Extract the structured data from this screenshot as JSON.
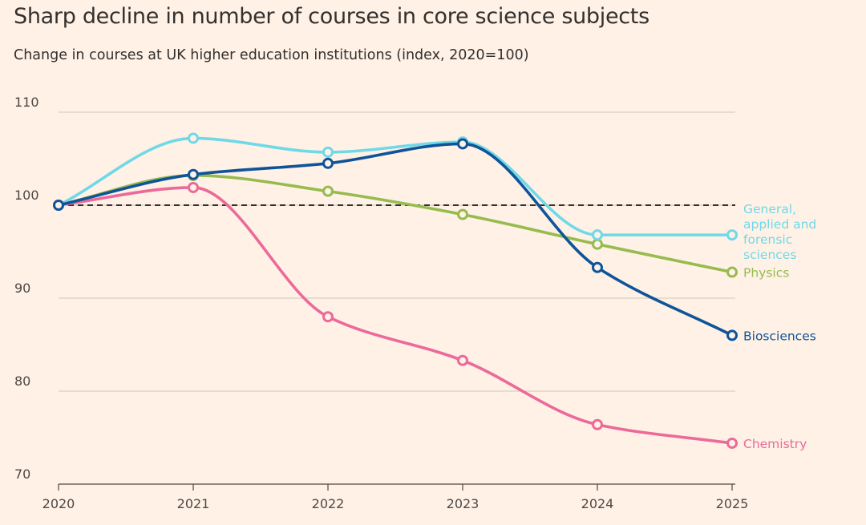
{
  "header": {
    "title": "Sharp decline in number of courses in core science subjects",
    "subtitle": "Change in courses at UK higher education institutions (index, 2020=100)"
  },
  "chart_data": {
    "type": "line",
    "title": "Sharp decline in number of courses in core science subjects",
    "subtitle": "Change in courses at UK higher education institutions (index, 2020=100)",
    "xlabel": "",
    "ylabel": "",
    "x": [
      "2020",
      "2021",
      "2022",
      "2023",
      "2024",
      "2025"
    ],
    "ylim": [
      70,
      110
    ],
    "yticks": [
      70,
      80,
      90,
      100,
      110
    ],
    "grid": true,
    "reference_line": {
      "y": 100,
      "style": "dashed",
      "color": "#33302e"
    },
    "legend": "direct labels at right",
    "series": [
      {
        "name": "General, applied and forensic sciences",
        "label_lines": [
          "General,",
          "applied and",
          "forensic",
          "sciences"
        ],
        "color": "#6fd9e8",
        "values": [
          100,
          107.2,
          105.7,
          106.8,
          96.8,
          96.8
        ]
      },
      {
        "name": "Biosciences",
        "label_lines": [
          "Biosciences"
        ],
        "color": "#0f5499",
        "values": [
          100,
          103.3,
          104.5,
          106.6,
          93.3,
          86.0
        ]
      },
      {
        "name": "Physics",
        "label_lines": [
          "Physics"
        ],
        "color": "#96bb4f",
        "values": [
          100,
          103.2,
          101.5,
          99.0,
          95.8,
          92.8
        ]
      },
      {
        "name": "Chemistry",
        "label_lines": [
          "Chemistry"
        ],
        "color": "#eb6a9a",
        "values": [
          100,
          101.9,
          88.0,
          83.3,
          76.4,
          74.4
        ]
      }
    ]
  }
}
